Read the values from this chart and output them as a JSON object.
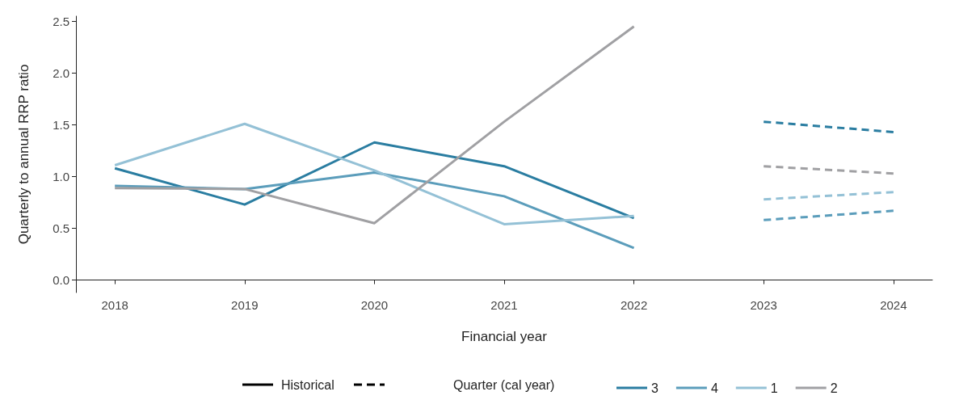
{
  "chart_data": {
    "type": "line",
    "xlabel": "Financial year",
    "ylabel": "Quarterly to annual RRP ratio",
    "legend_title": "Quarter (cal year)",
    "legend": "bottom",
    "grid": false,
    "marker": "none",
    "annotations": [
      "Historical"
    ],
    "xlim": [
      2017.7,
      2024.3
    ],
    "xticks": [
      2018,
      2019,
      2020,
      2021,
      2022,
      2023,
      2024
    ],
    "ylim": [
      -0.12,
      2.55
    ],
    "yticks": [
      {
        "value": 0,
        "label": "0.0"
      },
      0.5,
      {
        "value": 1,
        "label": "1.0"
      },
      1.5,
      {
        "value": 2,
        "label": "2.0"
      },
      2.5
    ],
    "series": [
      {
        "name": "3",
        "color": "#2a7da1",
        "line_style": "solid",
        "x": [
          2018,
          2019,
          2020,
          2021,
          2022
        ],
        "values": [
          1.08,
          0.73,
          1.33,
          1.1,
          0.6
        ]
      },
      {
        "name": "4",
        "color": "#5b9dbb",
        "line_style": "solid",
        "x": [
          2018,
          2019,
          2020,
          2021,
          2022
        ],
        "values": [
          0.91,
          0.88,
          1.04,
          0.81,
          0.31
        ]
      },
      {
        "name": "1",
        "color": "#94c1d6",
        "line_style": "solid",
        "x": [
          2018,
          2019,
          2020,
          2021,
          2022
        ],
        "values": [
          1.11,
          1.51,
          1.06,
          0.54,
          0.62
        ]
      },
      {
        "name": "2",
        "color": "#a0a0a3",
        "line_style": "solid",
        "x": [
          2018,
          2019,
          2020,
          2021,
          2022
        ],
        "values": [
          0.89,
          0.88,
          0.55,
          1.53,
          2.45
        ]
      },
      {
        "color": "#2a7da1",
        "line_style": "dashed",
        "x": [
          2023,
          2024
        ],
        "values": [
          1.53,
          1.43
        ]
      },
      {
        "color": "#5b9dbb",
        "line_style": "dashed",
        "x": [
          2023,
          2024
        ],
        "values": [
          0.58,
          0.67
        ]
      },
      {
        "color": "#94c1d6",
        "line_style": "dashed",
        "x": [
          2023,
          2024
        ],
        "values": [
          0.78,
          0.85
        ]
      },
      {
        "color": "#a0a0a3",
        "line_style": "dashed",
        "x": [
          2023,
          2024
        ],
        "values": [
          1.1,
          1.03
        ]
      }
    ]
  }
}
